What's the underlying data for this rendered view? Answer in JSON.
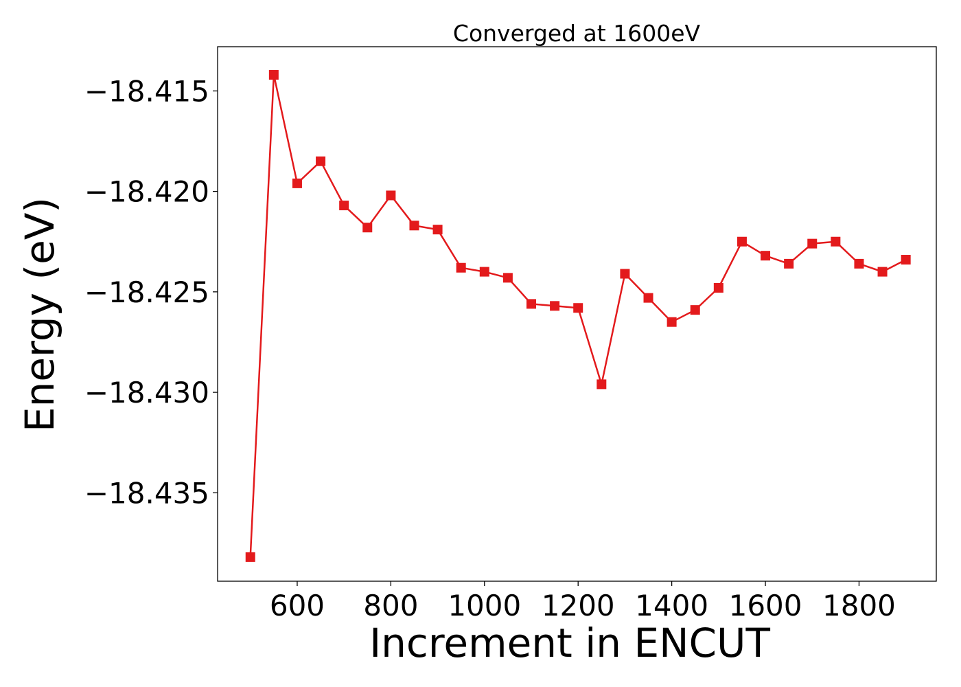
{
  "chart_data": {
    "type": "line",
    "title": "Converged at 1600eV",
    "xlabel": "Increment in ENCUT",
    "ylabel": "Energy (eV)",
    "xlim": [
      430,
      1965
    ],
    "ylim": [
      -18.4394,
      -18.4128
    ],
    "xticks": [
      600,
      800,
      1000,
      1200,
      1400,
      1600,
      1800
    ],
    "xtick_labels": [
      "600",
      "800",
      "1000",
      "1200",
      "1400",
      "1600",
      "1800"
    ],
    "yticks": [
      -18.415,
      -18.42,
      -18.425,
      -18.43,
      -18.435
    ],
    "ytick_labels": [
      "−18.415",
      "−18.420",
      "−18.425",
      "−18.430",
      "−18.435"
    ],
    "grid": false,
    "series": [
      {
        "color": "#e31a1c",
        "marker": "square",
        "x": [
          500,
          550,
          600,
          650,
          700,
          750,
          800,
          850,
          900,
          950,
          1000,
          1050,
          1100,
          1150,
          1200,
          1250,
          1300,
          1350,
          1400,
          1450,
          1500,
          1550,
          1600,
          1650,
          1700,
          1750,
          1800,
          1850,
          1900
        ],
        "y": [
          -18.4382,
          -18.4142,
          -18.4196,
          -18.4185,
          -18.4207,
          -18.4218,
          -18.4202,
          -18.4217,
          -18.4219,
          -18.4238,
          -18.424,
          -18.4243,
          -18.4256,
          -18.4257,
          -18.4258,
          -18.4296,
          -18.4241,
          -18.4253,
          -18.4265,
          -18.4259,
          -18.4248,
          -18.4225,
          -18.4232,
          -18.4236,
          -18.4226,
          -18.4225,
          -18.4236,
          -18.424,
          -18.4234
        ]
      }
    ]
  }
}
